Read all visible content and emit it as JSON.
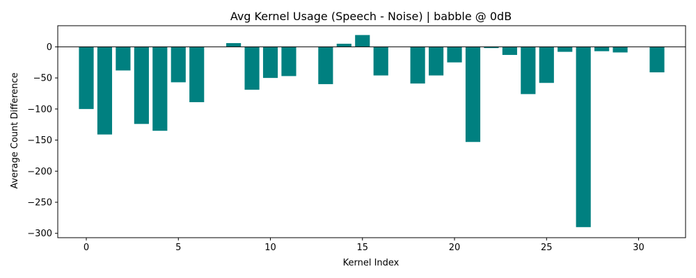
{
  "chart_data": {
    "type": "bar",
    "title": "Avg Kernel Usage (Speech - Noise) | babble @ 0dB",
    "xlabel": "Kernel Index",
    "ylabel": "Average Count Difference",
    "bar_color": "#008080",
    "xlim": [
      -1.55,
      32.55
    ],
    "ylim": [
      -307,
      34
    ],
    "xticks": [
      0,
      5,
      10,
      15,
      20,
      25,
      30
    ],
    "yticks": [
      0,
      -50,
      -100,
      -150,
      -200,
      -250,
      -300
    ],
    "grid": false,
    "zero_line": true,
    "x": [
      0,
      1,
      2,
      3,
      4,
      5,
      6,
      7,
      8,
      9,
      10,
      11,
      12,
      13,
      14,
      15,
      16,
      17,
      18,
      19,
      20,
      21,
      22,
      23,
      24,
      25,
      26,
      27,
      28,
      29,
      30,
      31
    ],
    "values": [
      -100,
      -141,
      -38,
      -124,
      -135,
      -57,
      -89,
      0,
      6,
      -69,
      -50,
      -47,
      0,
      -60,
      5,
      19,
      -46,
      0,
      -59,
      -46,
      -25,
      -153,
      -2,
      -13,
      -76,
      -58,
      -8,
      -290,
      -7,
      -9,
      0,
      -41
    ]
  }
}
